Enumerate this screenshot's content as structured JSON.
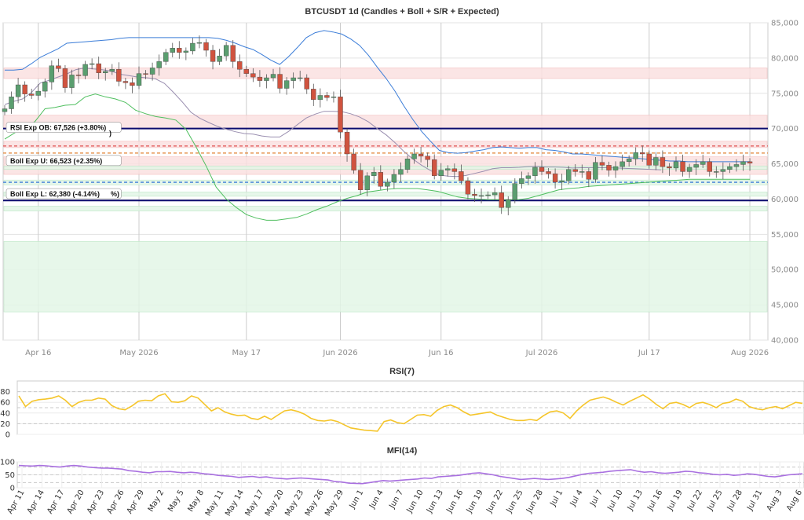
{
  "chart_data": [
    {
      "type": "candlestick",
      "title": "BTCUSDT 1d (Candles + Boll + S/R + Expected)",
      "ylim": [
        40000,
        85000
      ],
      "y_ticks": [
        40000,
        45000,
        50000,
        55000,
        60000,
        65000,
        70000,
        75000,
        80000,
        85000
      ],
      "y_tick_labels": [
        "40,000",
        "45,000",
        "50,000",
        "55,000",
        "60,000",
        "65,000",
        "70,000",
        "75,000",
        "80,000",
        "85,000"
      ],
      "x_tick_labels": [
        "Apr 16",
        "May 2026",
        "May 17",
        "Jun 2026",
        "Jun 16",
        "Jul 2026",
        "Jul 17",
        "Aug 2026"
      ],
      "x_tick_index": [
        5,
        20,
        36,
        50,
        65,
        80,
        96,
        111
      ],
      "grid": true,
      "colors": {
        "up": "#5a9e6f",
        "down": "#d0533f",
        "boll_upper": "#3b7dd8",
        "boll_mid": "#9a8fb0",
        "boll_lower": "#4fbf5f",
        "resistance": "#f4a6a6",
        "support": "#a7e0b4",
        "exp_ob": "#0b0b6e",
        "exp_boll_u": "#e08030",
        "exp_boll_l": "#3b7dd8"
      },
      "candles_close": [
        72800,
        74500,
        76200,
        74900,
        74700,
        75300,
        76600,
        78900,
        78500,
        75800,
        77600,
        77500,
        79100,
        79200,
        77900,
        78100,
        78400,
        76700,
        76500,
        76100,
        77800,
        77700,
        78600,
        79500,
        80800,
        81400,
        80800,
        81000,
        82100,
        82200,
        81100,
        79500,
        80300,
        81800,
        79500,
        78400,
        77800,
        77300,
        76800,
        77200,
        77700,
        75700,
        76800,
        77200,
        77200,
        75600,
        74100,
        74700,
        74400,
        74500,
        69500,
        66400,
        64100,
        61300,
        63300,
        63800,
        61800,
        62400,
        63500,
        64200,
        65700,
        66400,
        66100,
        65600,
        63300,
        64100,
        64300,
        63900,
        62600,
        60700,
        60500,
        60500,
        60600,
        60900,
        58800,
        59900,
        62200,
        62900,
        63300,
        64500,
        63900,
        63600,
        62400,
        62600,
        64200,
        63900,
        63900,
        62800,
        65200,
        64800,
        64100,
        64600,
        65300,
        65700,
        66600,
        66400,
        64800,
        65900,
        64600,
        64400,
        65300,
        63900,
        64500,
        64900,
        65300,
        63900,
        63900,
        64200,
        64600,
        64900,
        65300,
        65100
      ],
      "boll_upper": [
        78300,
        78300,
        78400,
        79200,
        80100,
        80700,
        81300,
        82100,
        82200,
        82300,
        82400,
        82500,
        82600,
        82800,
        82900,
        82900,
        82900,
        82900,
        82900,
        82900,
        82900,
        82900,
        82900,
        82900,
        82800,
        82500,
        82100,
        81600,
        81200,
        80500,
        79700,
        79100,
        80200,
        81500,
        82900,
        83600,
        83900,
        83700,
        83400,
        82700,
        81800,
        80400,
        78700,
        77100,
        75300,
        73200,
        71300,
        69600,
        68200,
        66900,
        66600,
        66500,
        66600,
        66800,
        67000,
        67300,
        67400,
        67300,
        67200,
        67300,
        67300,
        67000,
        66900,
        66700,
        66400,
        66400,
        66300,
        66200,
        66100,
        66000,
        65900,
        65800,
        65700,
        65600,
        65500,
        65400,
        65400,
        65300,
        65300,
        65300,
        65300,
        65300,
        65300,
        65300,
        65300
      ],
      "boll_lower": [
        68500,
        69400,
        70000,
        71000,
        72800,
        73000,
        73300,
        73400,
        74500,
        74900,
        74500,
        74200,
        73700,
        72600,
        72100,
        71700,
        71500,
        71200,
        69900,
        67400,
        64700,
        61700,
        60000,
        58800,
        57800,
        57300,
        57000,
        57000,
        57200,
        57400,
        57900,
        58500,
        59000,
        59600,
        60100,
        60500,
        61000,
        61200,
        61400,
        61500,
        61500,
        61500,
        61300,
        61100,
        60700,
        60300,
        60100,
        60000,
        59900,
        59900,
        59900,
        59900,
        60100,
        60500,
        60900,
        61300,
        61500,
        61600,
        61800,
        61900,
        62000,
        62100,
        62200,
        62300,
        62400,
        62500,
        62600,
        62700,
        62800,
        62800,
        62800,
        62800,
        62800,
        62800,
        62800
      ],
      "resistance_zones": [
        [
          77100,
          78600
        ],
        [
          70000,
          71900
        ],
        [
          67300,
          68200
        ],
        [
          63500,
          66000
        ]
      ],
      "support_zones": [
        [
          64200,
          64700
        ],
        [
          62000,
          62700
        ],
        [
          60400,
          61000
        ],
        [
          58300,
          59000
        ],
        [
          44000,
          54000
        ]
      ],
      "expected_levels": [
        {
          "label": "RSI Exp OB: 67,526 (+3.80%)",
          "value": 67526
        },
        {
          "label": "Boll Exp U: 66,523 (+2.35%)",
          "value": 66523
        },
        {
          "label": "Boll Exp L: 62,380 (-4.14%)",
          "value": 62380
        }
      ],
      "horizontal_lines": [
        70000,
        59800
      ],
      "partial_labels": [
        ")",
        "%)"
      ]
    },
    {
      "type": "line",
      "title": "RSI(7)",
      "ylim": [
        0,
        100
      ],
      "y_ticks": [
        0,
        20,
        40,
        60,
        80
      ],
      "y_tick_labels": [
        "0",
        "20",
        "40",
        "60",
        "80"
      ],
      "reference_lines": [
        20,
        50,
        80
      ],
      "color": "#f5c52a",
      "values": [
        72,
        52,
        62,
        65,
        66,
        68,
        72,
        64,
        52,
        60,
        64,
        64,
        68,
        66,
        54,
        48,
        46,
        53,
        62,
        64,
        63,
        72,
        76,
        61,
        60,
        63,
        72,
        68,
        56,
        44,
        50,
        42,
        38,
        35,
        36,
        30,
        28,
        34,
        28,
        36,
        44,
        46,
        43,
        38,
        30,
        26,
        25,
        27,
        24,
        18,
        12,
        10,
        8,
        7,
        6,
        24,
        27,
        22,
        20,
        28,
        36,
        37,
        34,
        45,
        52,
        55,
        50,
        42,
        36,
        38,
        40,
        42,
        36,
        32,
        28,
        26,
        26,
        28,
        26,
        35,
        42,
        44,
        40,
        30,
        44,
        55,
        64,
        67,
        70,
        66,
        60,
        55,
        62,
        68,
        74,
        66,
        56,
        48,
        58,
        60,
        56,
        50,
        58,
        60,
        56,
        50,
        58,
        60,
        66,
        62,
        52,
        48,
        46,
        50,
        52,
        48,
        54,
        60,
        58
      ]
    },
    {
      "type": "line",
      "title": "MFI(14)",
      "ylim": [
        0,
        100
      ],
      "y_ticks": [
        0,
        50,
        100
      ],
      "y_tick_labels": [
        "0",
        "50",
        "100"
      ],
      "reference_lines": [
        20,
        50,
        80
      ],
      "color": "#a970e0",
      "x_tick_labels": [
        "Apr 11",
        "Apr 14",
        "Apr 17",
        "Apr 20",
        "Apr 23",
        "Apr 26",
        "Apr 29",
        "May 2",
        "May 5",
        "May 8",
        "May 11",
        "May 14",
        "May 17",
        "May 20",
        "May 23",
        "May 26",
        "May 29",
        "Jun 1",
        "Jun 4",
        "Jun 7",
        "Jun 10",
        "Jun 13",
        "Jun 16",
        "Jun 19",
        "Jun 22",
        "Jun 25",
        "Jun 28",
        "Jul 1",
        "Jul 4",
        "Jul 7",
        "Jul 10",
        "Jul 13",
        "Jul 16",
        "Jul 19",
        "Jul 22",
        "Jul 25",
        "Jul 28",
        "Jul 31",
        "Aug 3",
        "Aug 6"
      ],
      "values": [
        86,
        85,
        84,
        86,
        85,
        82,
        80,
        84,
        86,
        84,
        80,
        78,
        76,
        76,
        74,
        72,
        66,
        64,
        60,
        58,
        62,
        62,
        63,
        60,
        58,
        60,
        58,
        54,
        52,
        48,
        46,
        44,
        40,
        42,
        44,
        40,
        42,
        38,
        36,
        34,
        36,
        38,
        36,
        34,
        32,
        30,
        24,
        22,
        18,
        17,
        16,
        20,
        24,
        28,
        26,
        28,
        30,
        32,
        34,
        38,
        36,
        42,
        44,
        46,
        48,
        52,
        56,
        58,
        54,
        50,
        44,
        40,
        36,
        32,
        34,
        36,
        34,
        32,
        34,
        36,
        40,
        46,
        52,
        56,
        58,
        60,
        64,
        66,
        68,
        70,
        64,
        60,
        62,
        58,
        56,
        58,
        60,
        64,
        62,
        58,
        56,
        52,
        50,
        52,
        48,
        50,
        54,
        52,
        48,
        44,
        42,
        46,
        50,
        52,
        54
      ]
    }
  ]
}
